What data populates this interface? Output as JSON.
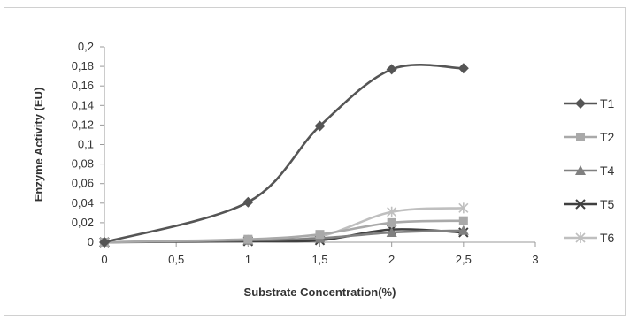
{
  "chart_data": {
    "type": "line",
    "title": "",
    "xlabel": "Substrate Concentration(%)",
    "ylabel": "Enzyme Activity (EU)",
    "xlim": [
      0,
      3
    ],
    "ylim": [
      0,
      0.2
    ],
    "x_ticks": [
      "0",
      "0,5",
      "1",
      "1,5",
      "2",
      "2,5",
      "3"
    ],
    "y_ticks": [
      "0",
      "0,02",
      "0,04",
      "0,06",
      "0,08",
      "0,1",
      "0,12",
      "0,14",
      "0,16",
      "0,18",
      "0,2"
    ],
    "grid": false,
    "legend_position": "right",
    "x": [
      0,
      1,
      1.5,
      2,
      2.5
    ],
    "series": [
      {
        "name": "T1",
        "values": [
          0,
          0.041,
          0.119,
          0.177,
          0.178
        ],
        "color": "#555555",
        "marker": "diamond"
      },
      {
        "name": "T2",
        "values": [
          0,
          0.003,
          0.008,
          0.02,
          0.022
        ],
        "color": "#a9a9a9",
        "marker": "square"
      },
      {
        "name": "T4",
        "values": [
          0,
          0.002,
          0.004,
          0.01,
          0.012
        ],
        "color": "#808080",
        "marker": "triangle"
      },
      {
        "name": "T5",
        "values": [
          0,
          0.001,
          0.002,
          0.013,
          0.01
        ],
        "color": "#3f3f3f",
        "marker": "x"
      },
      {
        "name": "T6",
        "values": [
          0,
          0.002,
          0.006,
          0.031,
          0.035
        ],
        "color": "#bfbfbf",
        "marker": "star"
      }
    ]
  }
}
